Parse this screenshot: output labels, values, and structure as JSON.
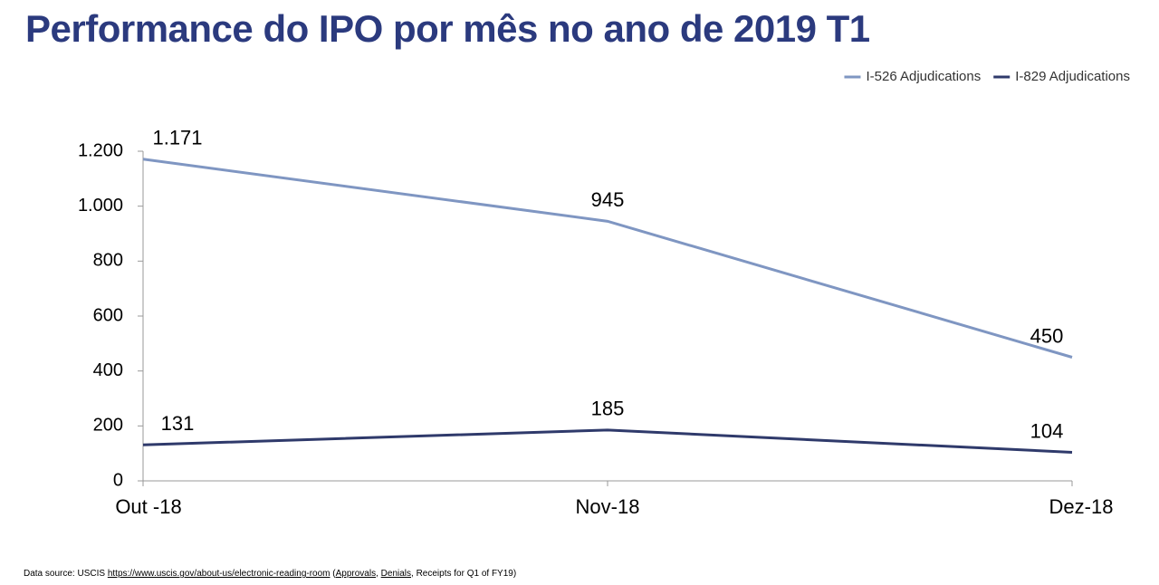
{
  "chart_data": {
    "type": "line",
    "title": "Performance do IPO por mês no ano de 2019 T1",
    "categories": [
      "Out -18",
      "Nov-18",
      "Dez-18"
    ],
    "series": [
      {
        "name": "I-526 Adjudications",
        "color": "#7f96c2",
        "values": [
          1171,
          945,
          450
        ],
        "value_labels": [
          "1.171",
          "945",
          "450"
        ]
      },
      {
        "name": "I-829 Adjudications",
        "color": "#2f3a6b",
        "values": [
          131,
          185,
          104
        ]
      }
    ],
    "ylim": [
      0,
      1200
    ],
    "yticks": [
      0,
      200,
      400,
      600,
      800,
      {
        "value": 1000,
        "label": "1.000"
      },
      {
        "value": 1200,
        "label": "1.200"
      }
    ],
    "legend": "top-right",
    "source": {
      "text": "Data source: USCIS",
      "link": "https://www.uscis.gov/about-us/electronic-reading-room",
      "open": "(",
      "approvals": "Approvals",
      "comma": ",",
      "denials": "Denials",
      "rest": ", Receipts for Q1 of FY19)"
    }
  }
}
